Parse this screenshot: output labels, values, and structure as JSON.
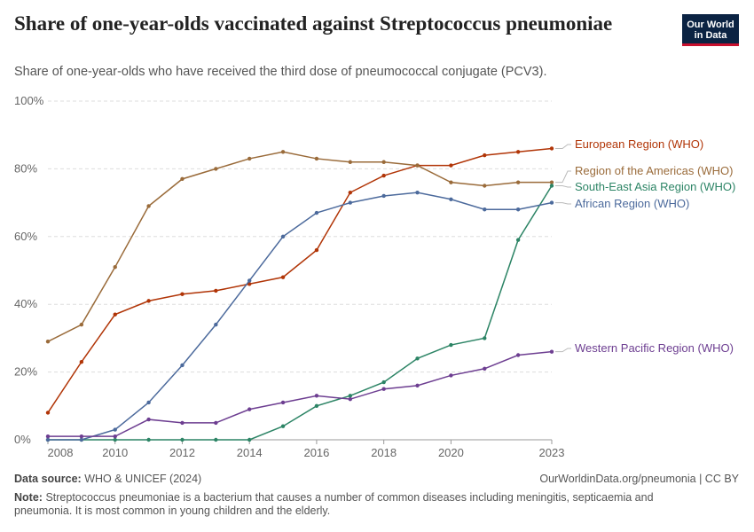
{
  "header": {
    "title": "Share of one-year-olds vaccinated against Streptococcus pneumoniae",
    "subtitle": "Share of one-year-olds who have received the third dose of pneumococcal conjugate (PCV3).",
    "logo_line1": "Our World",
    "logo_line2": "in Data"
  },
  "footer": {
    "source_label": "Data source:",
    "source_text": "WHO & UNICEF (2024)",
    "credit": "OurWorldinData.org/pneumonia | CC BY",
    "note_label": "Note:",
    "note_text": "Streptococcus pneumoniae is a bacterium that causes a number of common diseases including meningitis, septicaemia and pneumonia. It is most common in young children and the elderly."
  },
  "chart_data": {
    "type": "line",
    "title": "Share of one-year-olds vaccinated against Streptococcus pneumoniae",
    "ylim": [
      0,
      100
    ],
    "xlim": [
      2008,
      2023
    ],
    "y_ticks": [
      0,
      20,
      40,
      60,
      80,
      100
    ],
    "y_tick_labels": [
      "0%",
      "20%",
      "40%",
      "60%",
      "80%",
      "100%"
    ],
    "x_ticks": [
      2008,
      2010,
      2012,
      2014,
      2016,
      2018,
      2020,
      2023
    ],
    "grid": "horizontal dashed",
    "legend": "right, labels at line ends",
    "x": [
      2008,
      2009,
      2010,
      2011,
      2012,
      2013,
      2014,
      2015,
      2016,
      2017,
      2018,
      2019,
      2020,
      2021,
      2022,
      2023
    ],
    "series": [
      {
        "name": "European Region (WHO)",
        "color": "#b13507",
        "values": [
          8,
          23,
          37,
          41,
          43,
          44,
          46,
          48,
          56,
          73,
          78,
          81,
          81,
          84,
          85,
          86
        ]
      },
      {
        "name": "Region of the Americas (WHO)",
        "color": "#9a6b3a",
        "values": [
          29,
          34,
          51,
          69,
          77,
          80,
          83,
          85,
          83,
          82,
          82,
          81,
          76,
          75,
          76,
          76
        ]
      },
      {
        "name": "South-East Asia Region (WHO)",
        "color": "#2c8465",
        "values": [
          0,
          0,
          0,
          0,
          0,
          0,
          0,
          4,
          10,
          13,
          17,
          24,
          28,
          30,
          59,
          75
        ]
      },
      {
        "name": "African Region (WHO)",
        "color": "#4c6a9c",
        "values": [
          0,
          0,
          3,
          11,
          22,
          34,
          47,
          60,
          67,
          70,
          72,
          73,
          71,
          68,
          68,
          70
        ]
      },
      {
        "name": "Western Pacific Region (WHO)",
        "color": "#6d3e91",
        "values": [
          1,
          1,
          1,
          6,
          5,
          5,
          9,
          11,
          13,
          12,
          15,
          16,
          19,
          21,
          25,
          26
        ]
      }
    ]
  }
}
